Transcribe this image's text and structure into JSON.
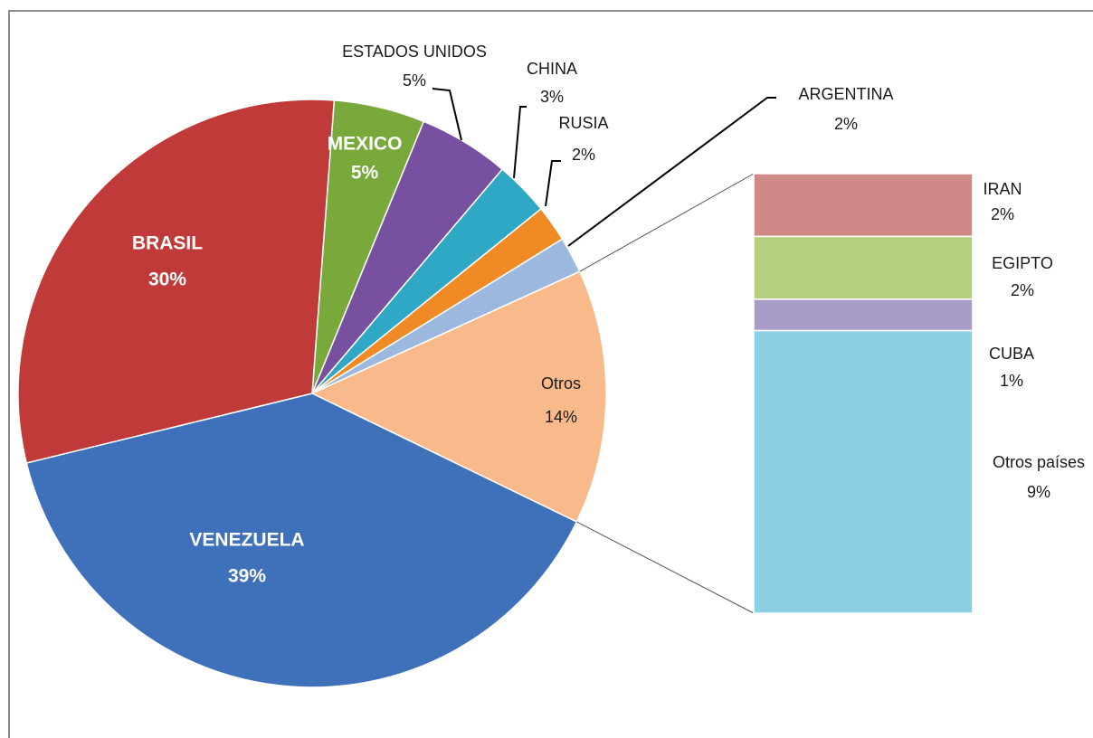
{
  "chart_data": {
    "type": "pie",
    "categories": [
      "MEXICO",
      "ESTADOS UNIDOS",
      "CHINA",
      "RUSIA",
      "ARGENTINA",
      "Otros",
      "VENEZUELA",
      "BRASIL"
    ],
    "values": [
      5,
      5,
      3,
      2,
      2,
      14,
      39,
      30
    ],
    "value_labels": [
      "5%",
      "5%",
      "3%",
      "2%",
      "2%",
      "14%",
      "39%",
      "30%"
    ],
    "colors": [
      "#79a93b",
      "#7850a0",
      "#2fa8c6",
      "#f08a24",
      "#9db8de",
      "#f8b98b",
      "#3f71ba",
      "#c03a39"
    ],
    "breakdown": {
      "categories": [
        "IRAN",
        "EGIPTO",
        "CUBA",
        "Otros países"
      ],
      "values": [
        2,
        2,
        1,
        9
      ],
      "value_labels": [
        "2%",
        "2%",
        "1%",
        "9%"
      ],
      "colors": [
        "#cf8987",
        "#b4cf80",
        "#a89cc8",
        "#8dcfe2"
      ]
    }
  }
}
